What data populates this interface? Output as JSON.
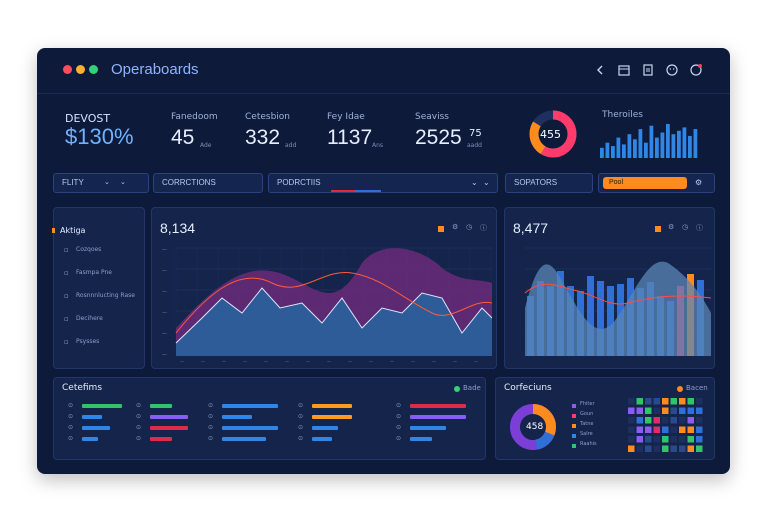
{
  "app": {
    "title": "Operaboards"
  },
  "kpis": [
    {
      "label": "DEVOST",
      "value": "$130%"
    },
    {
      "label": "Fanedoom",
      "value": "45",
      "unit": "Ade"
    },
    {
      "label": "Cetesbion",
      "value": "332",
      "unit": "add"
    },
    {
      "label": "Fey Idae",
      "value": "1137",
      "unit": "Ans"
    },
    {
      "label": "Seaviss",
      "value": "2525",
      "sup": "75",
      "unit": "aadd"
    }
  ],
  "donut_kpi": {
    "value": "455"
  },
  "mini_bars": {
    "label": "Theroiles",
    "values": [
      30,
      45,
      35,
      60,
      40,
      70,
      55,
      85,
      45,
      95,
      60,
      75,
      100,
      70,
      80,
      90,
      65,
      85
    ]
  },
  "filters": {
    "filter1": "FLITY",
    "filter2": "CORRCTIONS",
    "filter3": "PODRCTIIS",
    "filter4": "SOPATORS",
    "filter5": "Pool"
  },
  "sidebar": {
    "title": "Aktiga",
    "items": [
      "Cozqoes",
      "Fasmpa Pne",
      "Rosnnnlucting Rase",
      "Decihere",
      "Psysses"
    ]
  },
  "main_chart": {
    "value": "8,134"
  },
  "side_chart": {
    "value": "8,477"
  },
  "bottom_left": {
    "title": "Cetefims",
    "legend": "Bade"
  },
  "bottom_right": {
    "title": "Corfeciuns",
    "legend": "Bacen",
    "donut_value": "458",
    "legend_items": [
      "Fhiter",
      "Goun",
      "Tatne",
      "Salre",
      "Raahis"
    ]
  },
  "colors": {
    "accent": "#2f6fd6",
    "orange": "#ff8a1e",
    "pink": "#e02a6a",
    "bg": "#0d1a3a",
    "panel": "#14244a"
  }
}
